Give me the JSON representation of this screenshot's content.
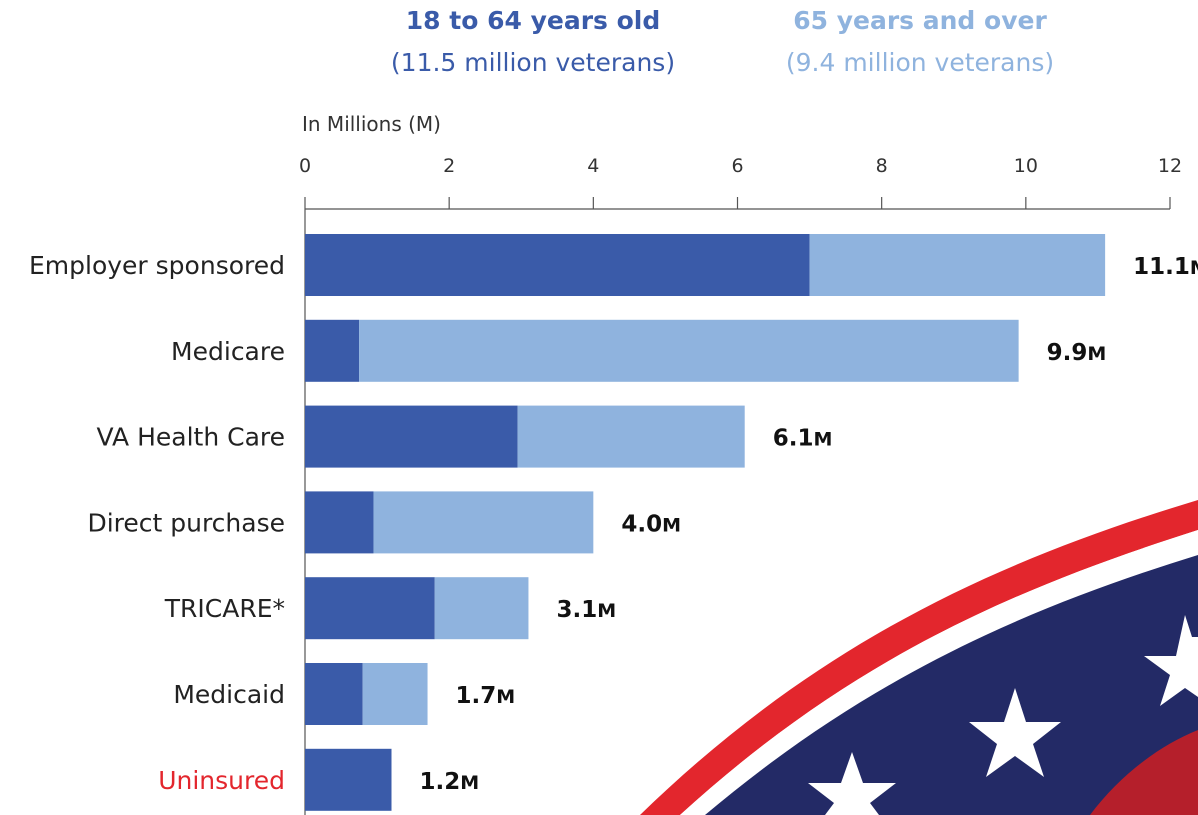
{
  "legend": {
    "series1_name": "18 to 64 years old",
    "series1_sub": "(11.5 million veterans)",
    "series2_name": "65 years and over",
    "series2_sub": "(9.4 million veterans)"
  },
  "colors": {
    "series1": "#3a5ba9",
    "series2": "#8fb3de",
    "uninsured_label": "#e3262d",
    "category_label": "#222222",
    "flag_red": "#e3262d",
    "flag_navy": "#232a66",
    "flag_white": "#ffffff"
  },
  "chart_data": {
    "type": "bar",
    "orientation": "horizontal",
    "stacked": true,
    "xlabel": "In Millions (M)",
    "xlim": [
      0,
      12
    ],
    "xticks": [
      0,
      2,
      4,
      6,
      8,
      10,
      12
    ],
    "tick_labels": [
      "0",
      "2",
      "4",
      "6",
      "8",
      "10",
      "12"
    ],
    "categories": [
      "Employer sponsored",
      "Medicare",
      "VA Health Care",
      "Direct purchase",
      "TRICARE*",
      "Medicaid",
      "Uninsured"
    ],
    "series": [
      {
        "name": "18 to 64 years old",
        "values": [
          7.0,
          0.75,
          2.95,
          0.95,
          1.8,
          0.8,
          1.2
        ]
      },
      {
        "name": "65 years and over",
        "values": [
          4.1,
          9.15,
          3.15,
          3.05,
          1.3,
          0.9,
          0.0
        ]
      }
    ],
    "totals": [
      11.1,
      9.9,
      6.1,
      4.0,
      3.1,
      1.7,
      1.2
    ],
    "total_labels": [
      "11.1",
      "9.9",
      "6.1",
      "4.0",
      "3.1",
      "1.7",
      "1.2"
    ],
    "total_unit": "M",
    "highlighted_category": "Uninsured",
    "grid": false
  }
}
